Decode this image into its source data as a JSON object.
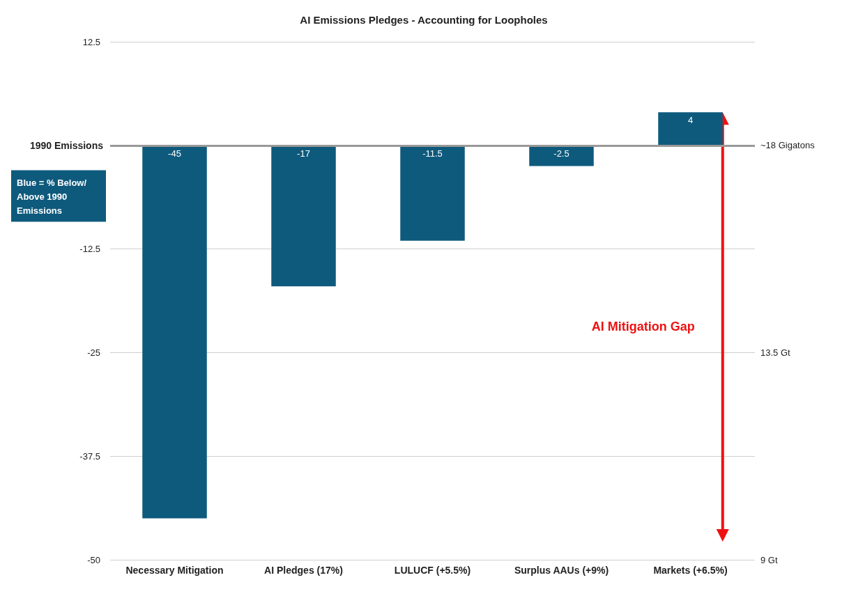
{
  "chart_data": {
    "type": "bar",
    "title": "AI Emissions Pledges - Accounting for Loopholes",
    "categories": [
      "Necessary Mitigation",
      "AI Pledges (17%)",
      "LULUCF (+5.5%)",
      "Surplus AAUs (+9%)",
      "Markets (+6.5%)"
    ],
    "values": [
      -45,
      -17,
      -11.5,
      -2.5,
      4
    ],
    "color": "#0e5a7d",
    "data_labels": true,
    "ylim": [
      -50,
      12.5
    ],
    "yticks": [
      -50,
      -37.5,
      -25,
      -12.5,
      {
        "value": 0,
        "label": null
      },
      12.5
    ],
    "ref_lines": [
      {
        "axis": "y",
        "value": 0,
        "label": "1990 Emissions",
        "color": "#999999"
      }
    ],
    "y2lim": [
      9,
      20.25
    ],
    "y2ticks": [
      {
        "value": 9,
        "label": "9 Gt"
      },
      {
        "value": 13.5,
        "label": "13.5 Gt"
      },
      {
        "value": 18,
        "label": "~18 Gigatons"
      }
    ],
    "grid": "y",
    "annotations": [
      "Blue = % Below/Above 1990 Emissions",
      "AI Mitigation Gap"
    ]
  }
}
